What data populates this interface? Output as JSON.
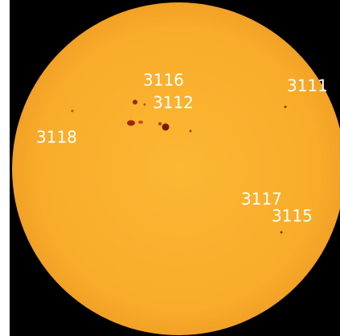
{
  "labels": [
    {
      "text": "3116"
    },
    {
      "text": "3112"
    },
    {
      "text": "3111"
    },
    {
      "text": "3118"
    },
    {
      "text": "3117"
    },
    {
      "text": "3115"
    }
  ]
}
